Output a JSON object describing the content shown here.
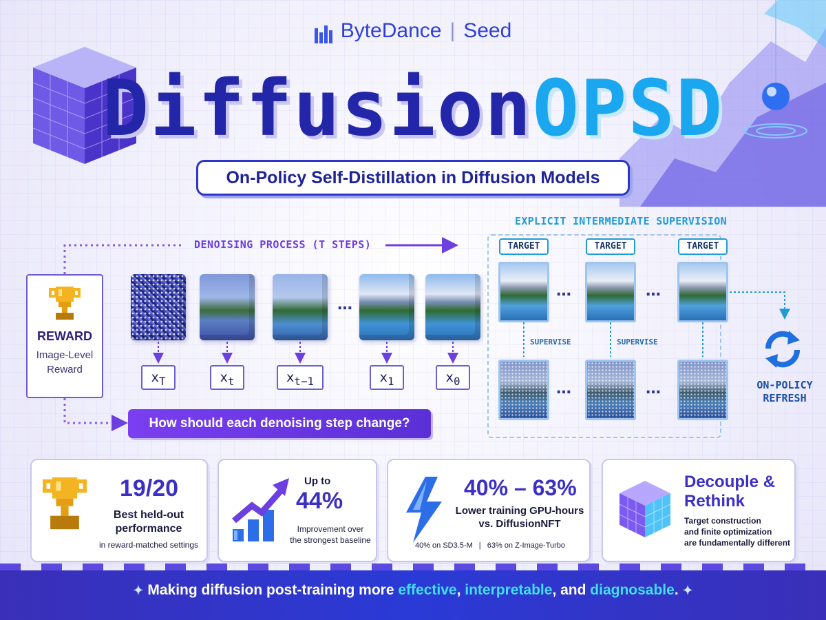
{
  "brand": {
    "company": "ByteDance",
    "separator": "|",
    "product": "Seed"
  },
  "title": {
    "part1": "Diffusion",
    "part2": "OPSD"
  },
  "subtitle": "On-Policy Self-Distillation in Diffusion Models",
  "reward": {
    "title": "REWARD",
    "subtitle_line1": "Image-Level",
    "subtitle_line2": "Reward"
  },
  "process": {
    "label": "DENOISING PROCESS (T STEPS)",
    "ellipsis": "…",
    "states": [
      {
        "base": "x",
        "sub": "T"
      },
      {
        "base": "x",
        "sub": "t"
      },
      {
        "base": "x",
        "sub": "t−1"
      },
      {
        "base": "x",
        "sub": "1"
      },
      {
        "base": "x",
        "sub": "0"
      }
    ],
    "question": "How should each denoising step change?"
  },
  "supervision": {
    "label": "EXPLICIT INTERMEDIATE SUPERVISION",
    "target_label": "TARGET",
    "supervise_label": "SUPERVISE",
    "ellipsis": "…",
    "refresh_line1": "ON-POLICY",
    "refresh_line2": "REFRESH"
  },
  "stats": [
    {
      "value": "19/20",
      "line1": "Best held-out",
      "line2": "performance",
      "line3": "in reward-matched settings"
    },
    {
      "prefix": "Up to",
      "value": "44%",
      "line1": "Improvement over",
      "line2": "the strongest baseline"
    },
    {
      "value": "40% – 63%",
      "line1": "Lower training GPU-hours",
      "line2": "vs. DiffusionNFT",
      "note1": "40% on SD3.5-M",
      "note_sep": "|",
      "note2": "63% on Z-Image-Turbo"
    },
    {
      "value_line1": "Decouple &",
      "value_line2": "Rethink",
      "line1": "Target construction",
      "line2": "and finite optimization",
      "line3": "are fundamentally different"
    }
  ],
  "tagline": {
    "prefix": "Making diffusion post-training more ",
    "hl1": "effective",
    "mid1": ", ",
    "hl2": "interpretable",
    "mid2": ", and ",
    "hl3": "diagnosable",
    "suffix": ".",
    "spark": "✦"
  },
  "colors": {
    "accent": "#2f3fd6",
    "title_dark": "#2326a8",
    "title_light": "#1aa7f0",
    "purple": "#6b3fe0",
    "cyan": "#1f9bd6"
  },
  "icons": [
    "bytedance-logo-icon",
    "trophy-icon",
    "chart-arrow-icon",
    "lightning-icon",
    "cube-icon",
    "refresh-icon",
    "sparkle-icon"
  ]
}
